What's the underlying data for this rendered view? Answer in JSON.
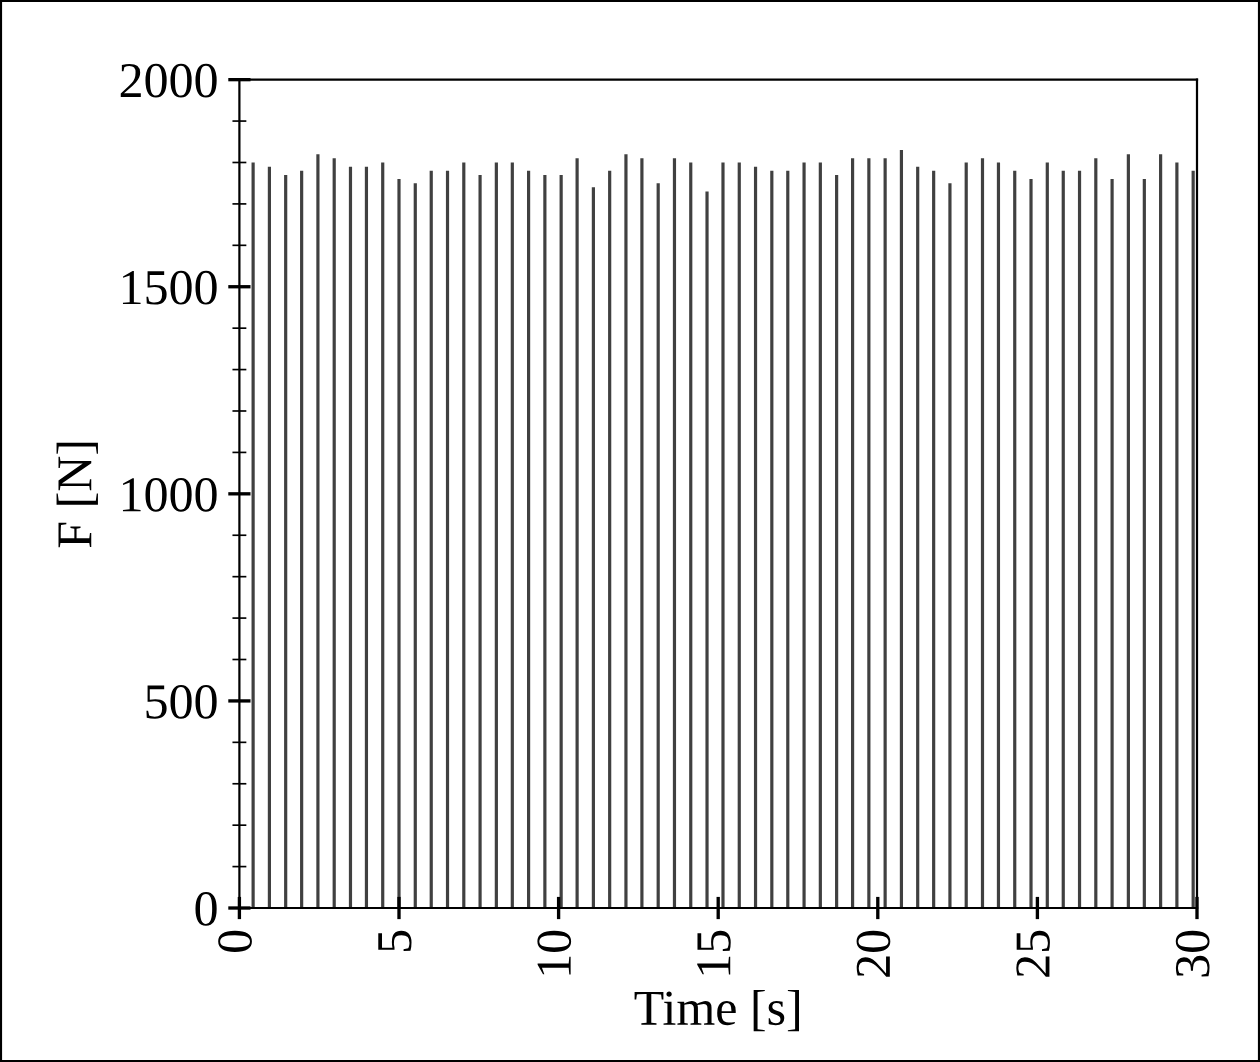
{
  "chart_data": {
    "type": "bar",
    "xlabel": "Time [s]",
    "ylabel": "F [N]",
    "color": "#404040",
    "x": [
      0.43,
      0.94,
      1.45,
      1.95,
      2.46,
      2.97,
      3.48,
      3.98,
      4.49,
      5.0,
      5.51,
      6.01,
      6.52,
      7.03,
      7.54,
      8.05,
      8.55,
      9.06,
      9.57,
      10.08,
      10.58,
      11.09,
      11.6,
      12.11,
      12.61,
      13.12,
      13.63,
      14.14,
      14.65,
      15.15,
      15.66,
      16.17,
      16.68,
      17.18,
      17.69,
      18.2,
      18.71,
      19.21,
      19.72,
      20.23,
      20.74,
      21.25,
      21.75,
      22.26,
      22.77,
      23.28,
      23.78,
      24.29,
      24.8,
      25.31,
      25.81,
      26.32,
      26.83,
      27.34,
      27.85,
      28.35,
      28.86,
      29.37,
      29.88
    ],
    "values": [
      1800,
      1790,
      1770,
      1780,
      1820,
      1810,
      1790,
      1790,
      1800,
      1760,
      1750,
      1780,
      1780,
      1800,
      1770,
      1800,
      1800,
      1780,
      1770,
      1770,
      1810,
      1740,
      1780,
      1820,
      1810,
      1750,
      1810,
      1800,
      1730,
      1800,
      1800,
      1790,
      1780,
      1780,
      1800,
      1800,
      1770,
      1810,
      1810,
      1810,
      1830,
      1790,
      1780,
      1750,
      1800,
      1810,
      1800,
      1780,
      1760,
      1800,
      1780,
      1780,
      1810,
      1760,
      1820,
      1760,
      1820,
      1800,
      1780
    ],
    "xlim": [
      0,
      30
    ],
    "xticks": [
      0,
      5,
      10,
      15,
      20,
      25,
      30
    ],
    "ylim": [
      0,
      2000
    ],
    "yticks": [
      0,
      500,
      1000,
      1500,
      2000
    ],
    "grid": false
  }
}
